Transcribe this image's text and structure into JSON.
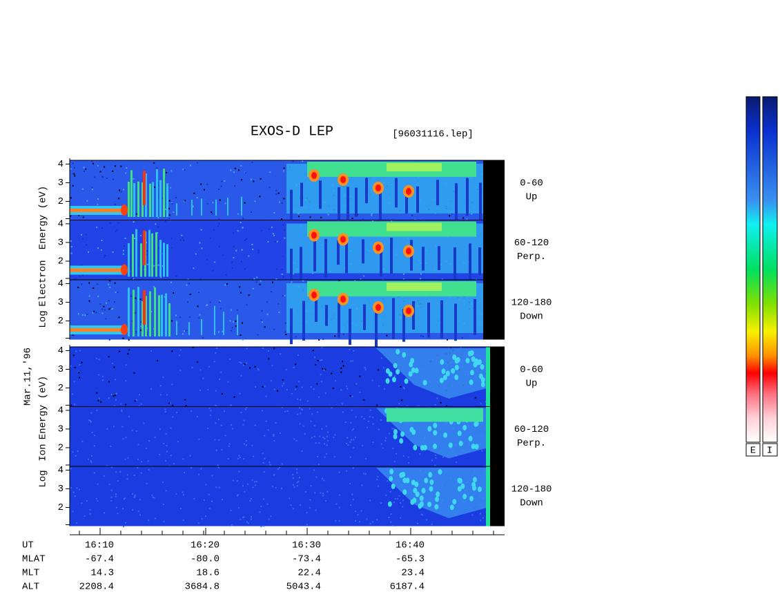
{
  "chart_data": {
    "type": "spectrogram",
    "title": "EXOS-D LEP",
    "file_label": "[96031116.lep]",
    "date_label": "Mar.11,'96",
    "ylim": [
      1,
      4.2
    ],
    "yticks": [
      2,
      3,
      4
    ],
    "groups": [
      {
        "axis_label": [
          "Log",
          "Electron",
          "Energy (eV)"
        ],
        "panels": [
          [
            "0-60",
            "Up"
          ],
          [
            "60-120",
            "Perp."
          ],
          [
            "120-180",
            "Down"
          ]
        ]
      },
      {
        "axis_label": [
          "Log",
          "Ion",
          "Energy (eV)"
        ],
        "panels": [
          [
            "0-60",
            "Up"
          ],
          [
            "60-120",
            "Perp."
          ],
          [
            "120-180",
            "Down"
          ]
        ]
      }
    ],
    "info_rows": [
      {
        "label": "UT",
        "values": [
          "16:10",
          "16:20",
          "16:30",
          "16:40"
        ]
      },
      {
        "label": "MLAT",
        "values": [
          "-67.4",
          "-80.0",
          "-73.4",
          "-65.3"
        ]
      },
      {
        "label": "MLT",
        "values": [
          "14.3",
          "18.6",
          "22.4",
          "23.4"
        ]
      },
      {
        "label": "ALT",
        "values": [
          "2208.4",
          "3684.8",
          "5043.4",
          "6187.4"
        ]
      }
    ],
    "colorbar_labels": [
      "E",
      "I"
    ]
  }
}
